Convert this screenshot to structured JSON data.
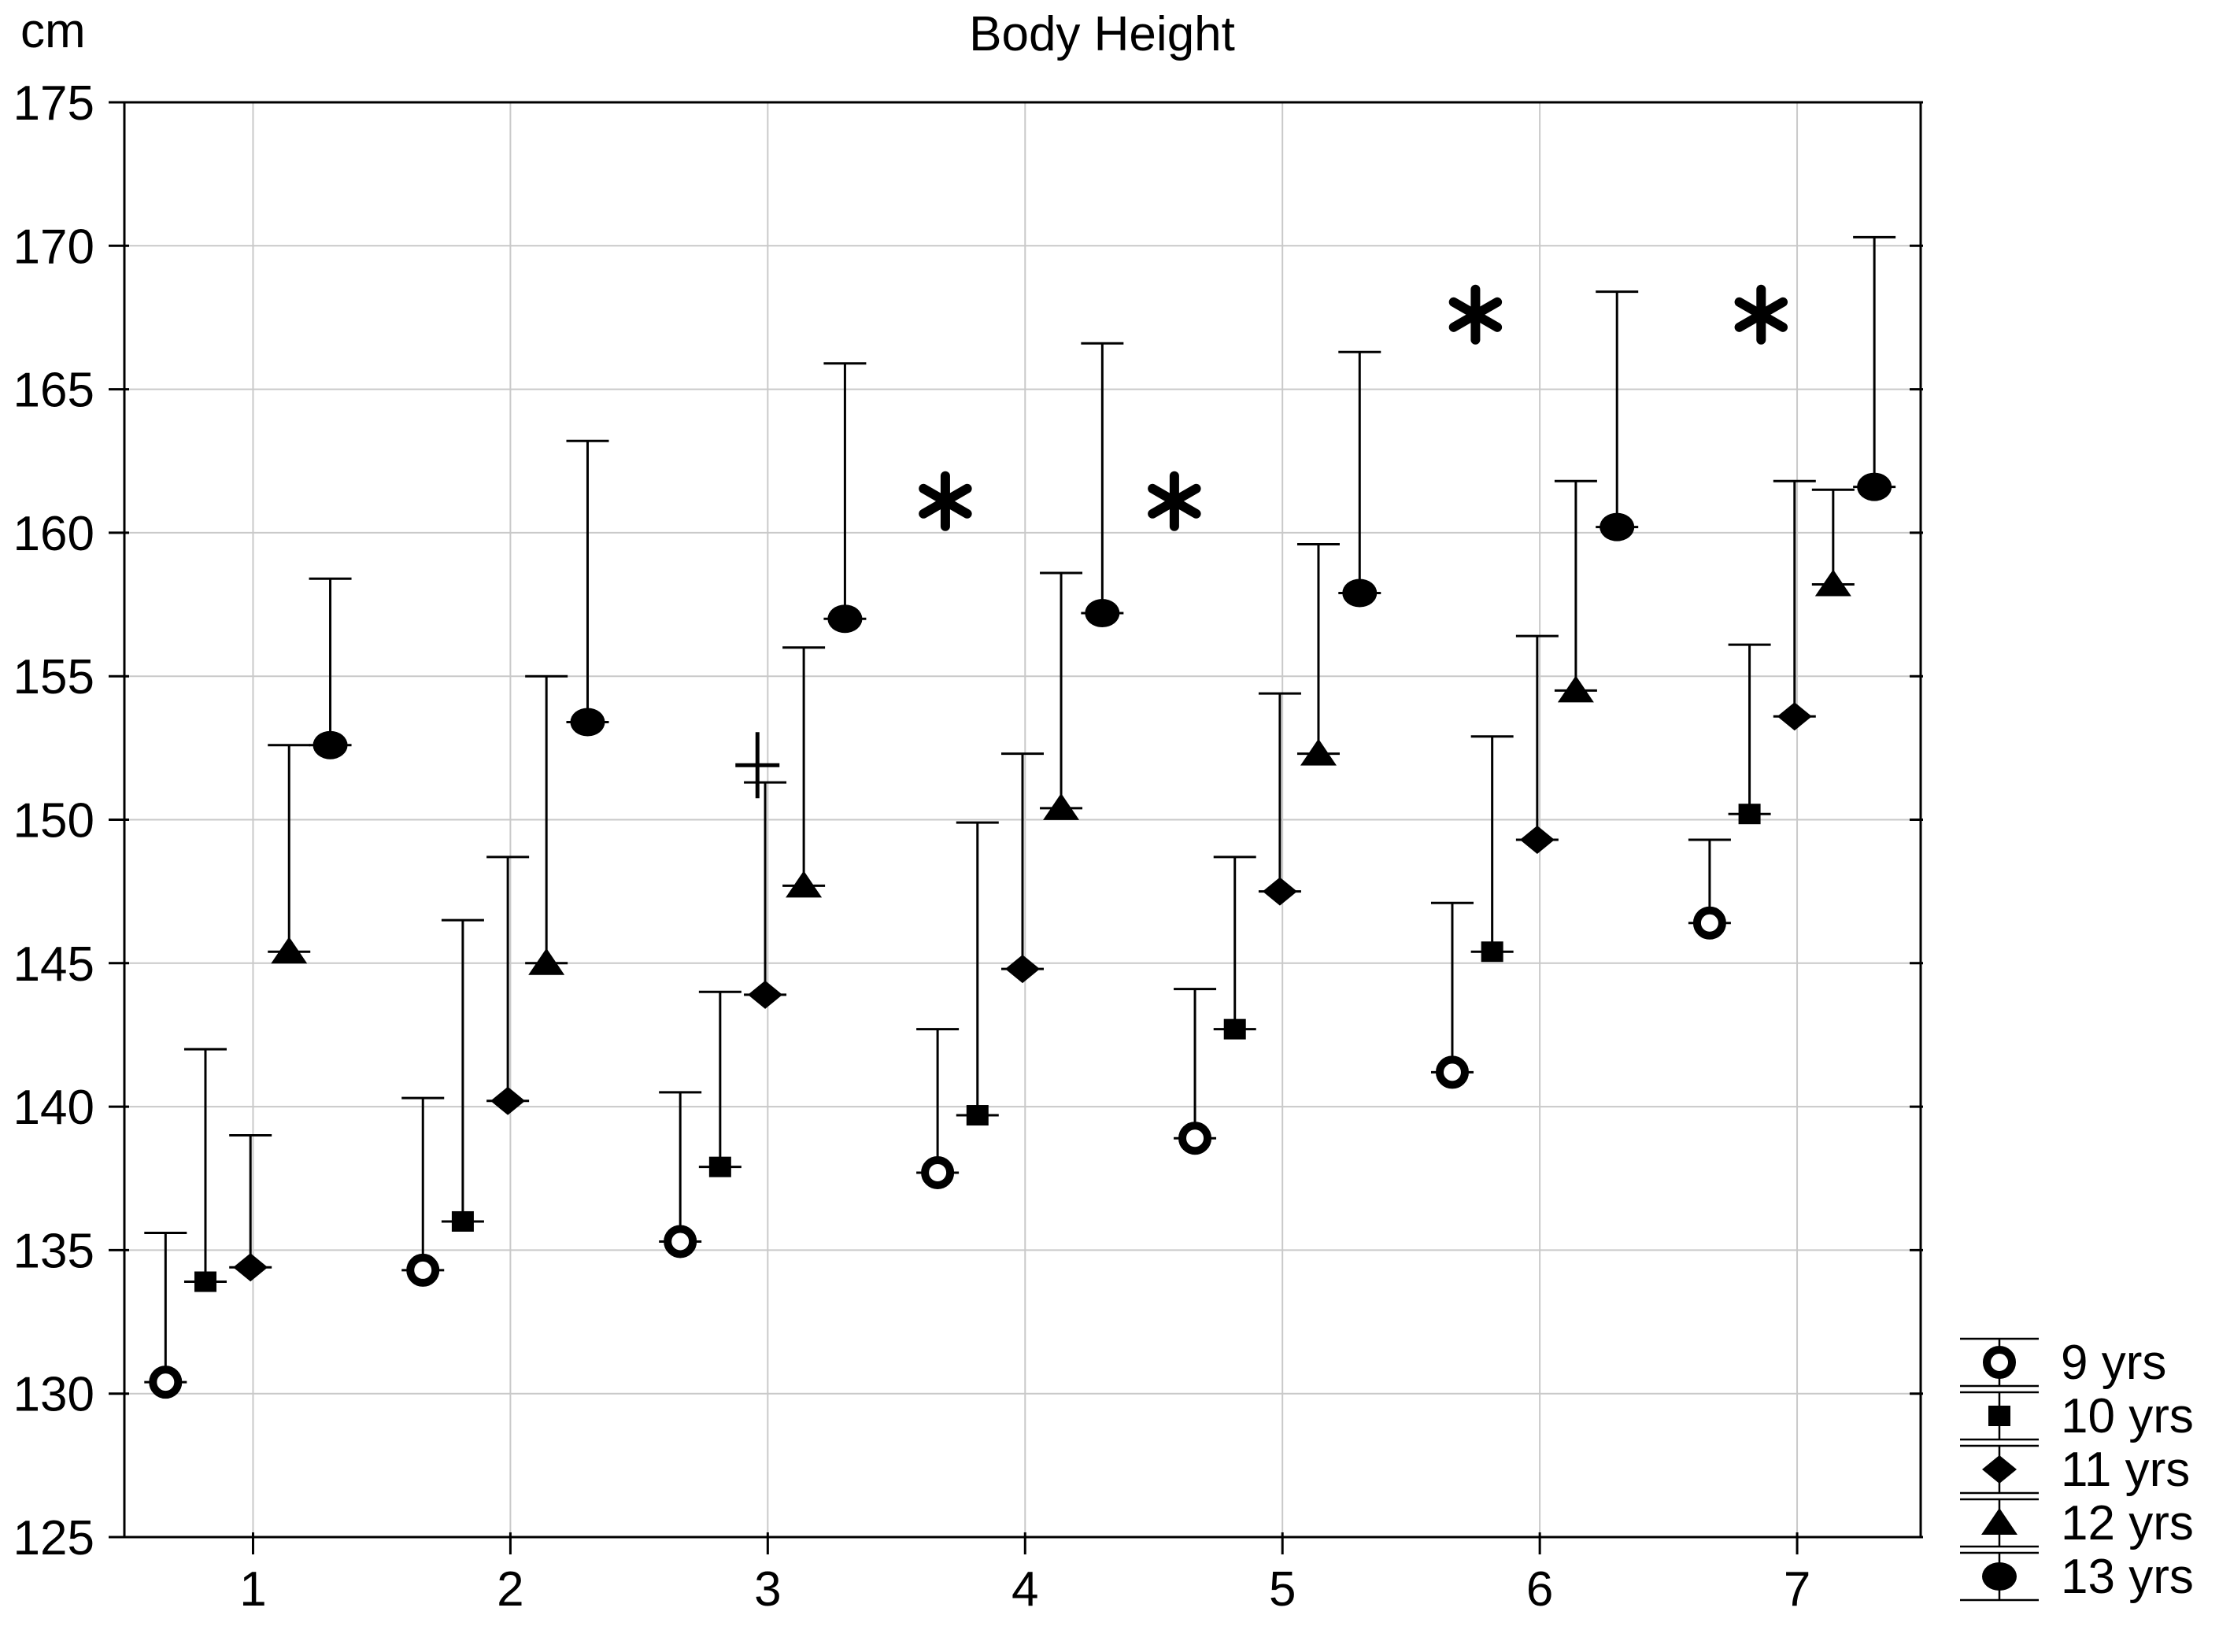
{
  "title": "Body Height",
  "y_unit": "cm",
  "chart_data": {
    "type": "scatter",
    "title": "Body Height",
    "ylabel": "cm",
    "xlabel": "",
    "ylim": [
      125,
      175
    ],
    "xlim": [
      0.5,
      7.48
    ],
    "grid": true,
    "legend_position": "bottom-right",
    "y_ticks": [
      125,
      130,
      135,
      140,
      145,
      150,
      155,
      160,
      165,
      170,
      175
    ],
    "x_ticks": [
      1,
      2,
      3,
      4,
      5,
      6,
      7
    ],
    "categories": [
      1,
      2,
      3,
      4,
      5,
      6,
      7
    ],
    "error_bars": "upper-only",
    "series": [
      {
        "name": "9 yrs",
        "marker": "open-circle",
        "offset": -0.34,
        "values": [
          130.4,
          134.3,
          135.3,
          137.7,
          138.9,
          141.2,
          146.4
        ],
        "upper": [
          135.6,
          140.3,
          140.5,
          142.7,
          144.1,
          147.1,
          149.3
        ]
      },
      {
        "name": "10 yrs",
        "marker": "square",
        "offset": -0.185,
        "values": [
          133.9,
          136.0,
          137.9,
          139.7,
          142.7,
          145.4,
          150.2
        ],
        "upper": [
          142.0,
          146.5,
          144.0,
          149.9,
          148.7,
          152.9,
          156.1
        ]
      },
      {
        "name": "11 yrs",
        "marker": "diamond",
        "offset": -0.01,
        "values": [
          134.4,
          140.2,
          143.9,
          144.8,
          147.5,
          149.3,
          153.6
        ],
        "upper": [
          139.0,
          148.7,
          151.3,
          152.3,
          154.4,
          156.4,
          161.8
        ]
      },
      {
        "name": "12 yrs",
        "marker": "triangle",
        "offset": 0.14,
        "values": [
          145.4,
          145.0,
          147.7,
          150.4,
          152.3,
          154.5,
          158.2
        ],
        "upper": [
          152.6,
          155.0,
          156.0,
          158.6,
          159.6,
          161.8,
          161.5
        ]
      },
      {
        "name": "13 yrs",
        "marker": "filled-circle",
        "offset": 0.3,
        "values": [
          152.6,
          153.4,
          157.0,
          157.2,
          157.9,
          160.2,
          161.6
        ],
        "upper": [
          158.4,
          163.2,
          165.9,
          166.6,
          166.3,
          168.4,
          170.3
        ]
      }
    ],
    "annotations": [
      {
        "symbol": "+",
        "x": 2.96,
        "y": 151.9
      },
      {
        "symbol": "*",
        "x": 3.69,
        "y": 161.1
      },
      {
        "symbol": "*",
        "x": 4.58,
        "y": 161.1
      },
      {
        "symbol": "*",
        "x": 5.75,
        "y": 167.6
      },
      {
        "symbol": "*",
        "x": 6.86,
        "y": 167.6
      }
    ]
  },
  "legend": {
    "items": [
      {
        "marker": "open-circle",
        "label": "9 yrs"
      },
      {
        "marker": "square",
        "label": "10 yrs"
      },
      {
        "marker": "diamond",
        "label": "11 yrs"
      },
      {
        "marker": "triangle",
        "label": "12 yrs"
      },
      {
        "marker": "filled-circle",
        "label": "13 yrs"
      }
    ]
  },
  "colors": {
    "marker": "#000000",
    "grid": "#c9c9c9",
    "frame": "#000000",
    "background": "#ffffff"
  }
}
